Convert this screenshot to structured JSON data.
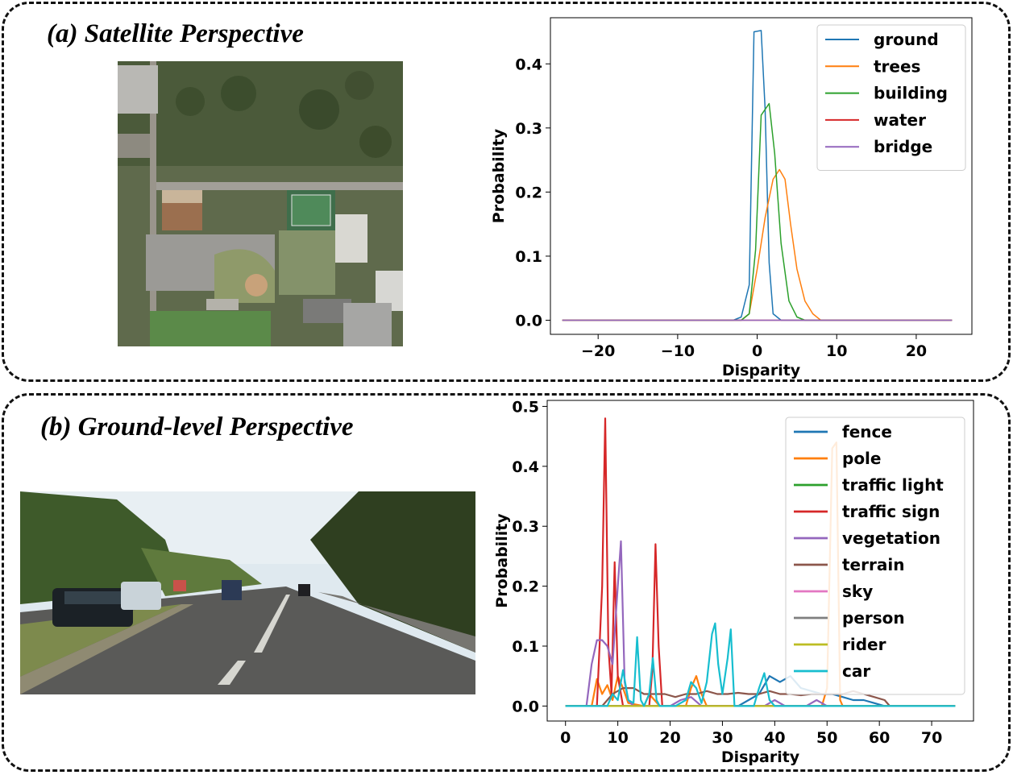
{
  "panels": {
    "a": {
      "title": "(a) Satellite Perspective"
    },
    "b": {
      "title": "(b) Ground-level Perspective"
    }
  },
  "chart_data": [
    {
      "type": "line",
      "title": "",
      "xlabel": "Disparity",
      "ylabel": "Probability",
      "xlim": [
        -26,
        27
      ],
      "ylim": [
        -0.022,
        0.472
      ],
      "xticks": [
        -20,
        -10,
        0,
        10,
        20
      ],
      "xtick_labels": [
        "−20",
        "−10",
        "0",
        "10",
        "20"
      ],
      "yticks": [
        0.0,
        0.1,
        0.2,
        0.3,
        0.4
      ],
      "ytick_labels": [
        "0.0",
        "0.1",
        "0.2",
        "0.3",
        "0.4"
      ],
      "legend_position": "top-right",
      "line_width": 1.5,
      "series": [
        {
          "name": "ground",
          "color": "#1f77b4",
          "points": [
            [
              -24.5,
              0
            ],
            [
              -3,
              0
            ],
            [
              -2,
              0.005
            ],
            [
              -1,
              0.055
            ],
            [
              -0.4,
              0.45
            ],
            [
              0.5,
              0.452
            ],
            [
              1,
              0.33
            ],
            [
              1.5,
              0.09
            ],
            [
              2,
              0.01
            ],
            [
              3,
              0
            ],
            [
              24.5,
              0
            ]
          ]
        },
        {
          "name": "trees",
          "color": "#ff7f0e",
          "points": [
            [
              -24.5,
              0
            ],
            [
              -2,
              0
            ],
            [
              -1,
              0.01
            ],
            [
              0,
              0.08
            ],
            [
              1,
              0.16
            ],
            [
              2,
              0.22
            ],
            [
              2.8,
              0.235
            ],
            [
              3.5,
              0.22
            ],
            [
              4.2,
              0.15
            ],
            [
              5,
              0.08
            ],
            [
              6,
              0.03
            ],
            [
              7,
              0.01
            ],
            [
              8,
              0
            ],
            [
              24.5,
              0
            ]
          ]
        },
        {
          "name": "building",
          "color": "#2ca02c",
          "points": [
            [
              -24.5,
              0
            ],
            [
              -2,
              0
            ],
            [
              -1,
              0.01
            ],
            [
              -0.2,
              0.11
            ],
            [
              0.5,
              0.32
            ],
            [
              1.5,
              0.338
            ],
            [
              2.2,
              0.26
            ],
            [
              3,
              0.12
            ],
            [
              4,
              0.03
            ],
            [
              5,
              0.005
            ],
            [
              6,
              0
            ],
            [
              24.5,
              0
            ]
          ]
        },
        {
          "name": "water",
          "color": "#d62728",
          "points": [
            [
              -24.5,
              0
            ],
            [
              24.5,
              0
            ]
          ]
        },
        {
          "name": "bridge",
          "color": "#9467bd",
          "points": [
            [
              -24.5,
              0
            ],
            [
              24.5,
              0
            ]
          ]
        }
      ]
    },
    {
      "type": "line",
      "title": "",
      "xlabel": "Disparity",
      "ylabel": "Probability",
      "xlim": [
        -3.5,
        78
      ],
      "ylim": [
        -0.025,
        0.51
      ],
      "xticks": [
        0,
        10,
        20,
        30,
        40,
        50,
        60,
        70
      ],
      "xtick_labels": [
        "0",
        "10",
        "20",
        "30",
        "40",
        "50",
        "60",
        "70"
      ],
      "yticks": [
        0.0,
        0.1,
        0.2,
        0.3,
        0.4,
        0.5
      ],
      "ytick_labels": [
        "0.0",
        "0.1",
        "0.2",
        "0.3",
        "0.4",
        "0.5"
      ],
      "legend_position": "top-right",
      "line_width": 2.2,
      "series": [
        {
          "name": "fence",
          "color": "#1f77b4",
          "points": [
            [
              0,
              0
            ],
            [
              33,
              0
            ],
            [
              35,
              0.01
            ],
            [
              37,
              0.02
            ],
            [
              39,
              0.05
            ],
            [
              41,
              0.04
            ],
            [
              43,
              0.05
            ],
            [
              45,
              0.03
            ],
            [
              47,
              0.025
            ],
            [
              49,
              0.02
            ],
            [
              51,
              0.02
            ],
            [
              53,
              0.015
            ],
            [
              55,
              0.01
            ],
            [
              57,
              0.01
            ],
            [
              59,
              0.005
            ],
            [
              61,
              0
            ],
            [
              74.5,
              0
            ]
          ]
        },
        {
          "name": "pole",
          "color": "#ff7f0e",
          "points": [
            [
              0,
              0
            ],
            [
              5,
              0
            ],
            [
              6,
              0.045
            ],
            [
              7,
              0.02
            ],
            [
              8,
              0.035
            ],
            [
              9,
              0.01
            ],
            [
              10,
              0.05
            ],
            [
              11,
              0.03
            ],
            [
              12,
              0.005
            ],
            [
              15,
              0
            ],
            [
              16,
              0.02
            ],
            [
              17,
              0.01
            ],
            [
              18,
              0
            ],
            [
              23,
              0
            ],
            [
              24,
              0.03
            ],
            [
              25,
              0.05
            ],
            [
              26,
              0.02
            ],
            [
              27,
              0
            ],
            [
              49,
              0
            ],
            [
              50,
              0.03
            ],
            [
              51,
              0.43
            ],
            [
              51.8,
              0.44
            ],
            [
              52.5,
              0.01
            ],
            [
              53,
              0
            ],
            [
              74.5,
              0
            ]
          ]
        },
        {
          "name": "traffic light",
          "color": "#2ca02c",
          "points": [
            [
              0,
              0
            ],
            [
              74.5,
              0
            ]
          ]
        },
        {
          "name": "traffic sign",
          "color": "#d62728",
          "points": [
            [
              0,
              0
            ],
            [
              6,
              0
            ],
            [
              7,
              0.2
            ],
            [
              7.6,
              0.48
            ],
            [
              8.2,
              0.1
            ],
            [
              8.8,
              0.02
            ],
            [
              9.4,
              0.24
            ],
            [
              10,
              0.05
            ],
            [
              11,
              0
            ],
            [
              16,
              0
            ],
            [
              16.6,
              0.06
            ],
            [
              17.2,
              0.27
            ],
            [
              17.8,
              0.1
            ],
            [
              18.5,
              0
            ],
            [
              74.5,
              0
            ]
          ]
        },
        {
          "name": "vegetation",
          "color": "#9467bd",
          "points": [
            [
              0,
              0
            ],
            [
              4,
              0
            ],
            [
              5,
              0.07
            ],
            [
              6,
              0.11
            ],
            [
              7,
              0.11
            ],
            [
              8,
              0.1
            ],
            [
              9,
              0.07
            ],
            [
              10,
              0.2
            ],
            [
              10.6,
              0.275
            ],
            [
              11.3,
              0.04
            ],
            [
              12,
              0.01
            ],
            [
              13,
              0
            ],
            [
              20,
              0
            ],
            [
              22,
              0.01
            ],
            [
              24,
              0.015
            ],
            [
              26,
              0
            ],
            [
              38,
              0
            ],
            [
              40,
              0.01
            ],
            [
              42,
              0
            ],
            [
              46,
              0
            ],
            [
              48,
              0.01
            ],
            [
              50,
              0
            ],
            [
              74.5,
              0
            ]
          ]
        },
        {
          "name": "terrain",
          "color": "#8c564b",
          "points": [
            [
              0,
              0
            ],
            [
              7,
              0
            ],
            [
              9,
              0.02
            ],
            [
              11,
              0.03
            ],
            [
              13,
              0.03
            ],
            [
              15,
              0.02
            ],
            [
              17,
              0.02
            ],
            [
              19,
              0.02
            ],
            [
              21,
              0.015
            ],
            [
              23,
              0.02
            ],
            [
              25,
              0.02
            ],
            [
              27,
              0.025
            ],
            [
              29,
              0.02
            ],
            [
              31,
              0.02
            ],
            [
              33,
              0.022
            ],
            [
              35,
              0.02
            ],
            [
              37,
              0.02
            ],
            [
              39,
              0.025
            ],
            [
              41,
              0.02
            ],
            [
              43,
              0.02
            ],
            [
              45,
              0.018
            ],
            [
              47,
              0.02
            ],
            [
              49,
              0.02
            ],
            [
              51,
              0.02
            ],
            [
              53,
              0.02
            ],
            [
              55,
              0.025
            ],
            [
              57,
              0.02
            ],
            [
              59,
              0.015
            ],
            [
              61,
              0.01
            ],
            [
              62,
              0
            ],
            [
              74.5,
              0
            ]
          ]
        },
        {
          "name": "sky",
          "color": "#e377c2",
          "points": [
            [
              0,
              0
            ],
            [
              74.5,
              0
            ]
          ]
        },
        {
          "name": "person",
          "color": "#7f7f7f",
          "points": [
            [
              0,
              0
            ],
            [
              74.5,
              0
            ]
          ]
        },
        {
          "name": "rider",
          "color": "#bcbd22",
          "points": [
            [
              0,
              0
            ],
            [
              74.5,
              0
            ]
          ]
        },
        {
          "name": "car",
          "color": "#17becf",
          "points": [
            [
              0,
              0
            ],
            [
              8,
              0
            ],
            [
              9,
              0.02
            ],
            [
              10,
              0.01
            ],
            [
              11,
              0.06
            ],
            [
              12,
              0.01
            ],
            [
              13,
              0.005
            ],
            [
              13.7,
              0.115
            ],
            [
              14.4,
              0.01
            ],
            [
              15,
              0
            ],
            [
              16,
              0.02
            ],
            [
              16.7,
              0.08
            ],
            [
              17.4,
              0.01
            ],
            [
              18,
              0
            ],
            [
              21,
              0
            ],
            [
              23,
              0.01
            ],
            [
              24,
              0.04
            ],
            [
              25,
              0.03
            ],
            [
              26,
              0.005
            ],
            [
              27,
              0.04
            ],
            [
              28,
              0.12
            ],
            [
              28.6,
              0.138
            ],
            [
              29.2,
              0.07
            ],
            [
              30,
              0.02
            ],
            [
              31,
              0.08
            ],
            [
              31.6,
              0.128
            ],
            [
              32.3,
              0
            ],
            [
              36,
              0
            ],
            [
              37,
              0.03
            ],
            [
              38,
              0.055
            ],
            [
              39,
              0.01
            ],
            [
              40,
              0
            ],
            [
              74.5,
              0
            ]
          ]
        }
      ]
    }
  ]
}
